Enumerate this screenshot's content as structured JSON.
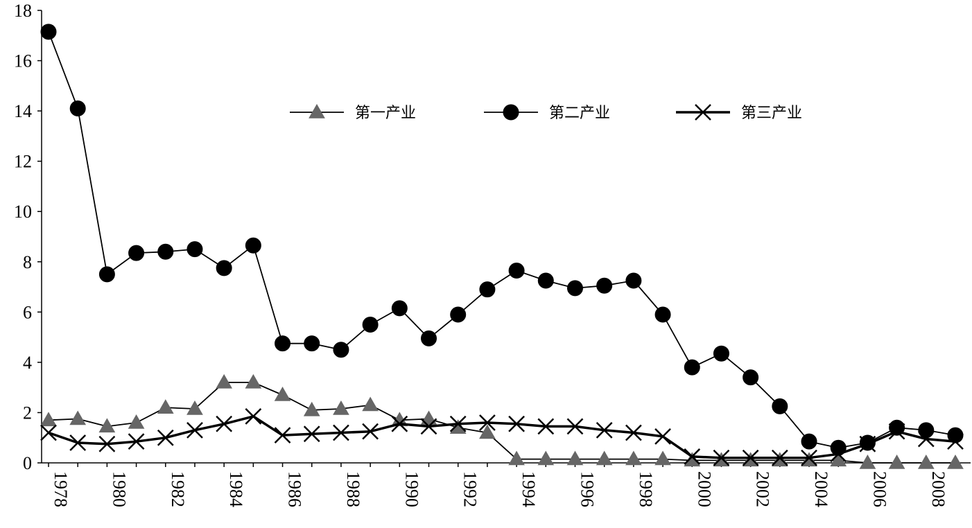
{
  "chart_data": {
    "type": "line",
    "title": "",
    "xlabel": "",
    "ylabel": "",
    "ylim": [
      0,
      18
    ],
    "yticks": [
      0,
      2,
      4,
      6,
      8,
      10,
      12,
      14,
      16,
      18
    ],
    "x": [
      1978,
      1979,
      1980,
      1981,
      1982,
      1983,
      1984,
      1985,
      1986,
      1987,
      1988,
      1989,
      1990,
      1991,
      1992,
      1993,
      1994,
      1995,
      1996,
      1997,
      1998,
      1999,
      2000,
      2001,
      2002,
      2003,
      2004,
      2005,
      2006,
      2007,
      2008,
      2009
    ],
    "xtick_labels": [
      "1978",
      "1980",
      "1982",
      "1984",
      "1986",
      "1988",
      "1990",
      "1992",
      "1994",
      "1996",
      "1998",
      "2000",
      "2002",
      "2004",
      "2006",
      "2008"
    ],
    "grid": false,
    "legend_position": "top-center",
    "series": [
      {
        "name": "第一产业",
        "marker": "triangle",
        "color": "#666666",
        "line_color": "#000000",
        "values": [
          1.7,
          1.75,
          1.45,
          1.6,
          2.2,
          2.15,
          3.2,
          3.2,
          2.7,
          2.1,
          2.15,
          2.3,
          1.7,
          1.75,
          1.4,
          1.2,
          0.15,
          0.15,
          0.15,
          0.15,
          0.15,
          0.15,
          0.1,
          0.1,
          0.1,
          0.1,
          0.1,
          0.1,
          0.0,
          0.0,
          0.0,
          0.0
        ]
      },
      {
        "name": "第二产业",
        "marker": "circle",
        "color": "#000000",
        "line_color": "#000000",
        "values": [
          17.15,
          14.1,
          7.5,
          8.35,
          8.4,
          8.5,
          7.75,
          8.65,
          4.75,
          4.75,
          4.5,
          5.5,
          6.15,
          4.95,
          5.9,
          6.9,
          7.65,
          7.25,
          6.95,
          7.05,
          7.25,
          5.9,
          3.8,
          4.35,
          3.4,
          2.25,
          0.85,
          0.6,
          0.8,
          1.4,
          1.3,
          1.1
        ]
      },
      {
        "name": "第三产业",
        "marker": "x",
        "color": "#000000",
        "line_color": "#000000",
        "values": [
          1.2,
          0.8,
          0.75,
          0.85,
          1.0,
          1.3,
          1.55,
          1.85,
          1.1,
          1.15,
          1.2,
          1.25,
          1.55,
          1.45,
          1.55,
          1.6,
          1.55,
          1.45,
          1.45,
          1.3,
          1.2,
          1.05,
          0.25,
          0.2,
          0.2,
          0.2,
          0.2,
          0.35,
          0.75,
          1.25,
          0.95,
          0.85
        ]
      }
    ]
  }
}
